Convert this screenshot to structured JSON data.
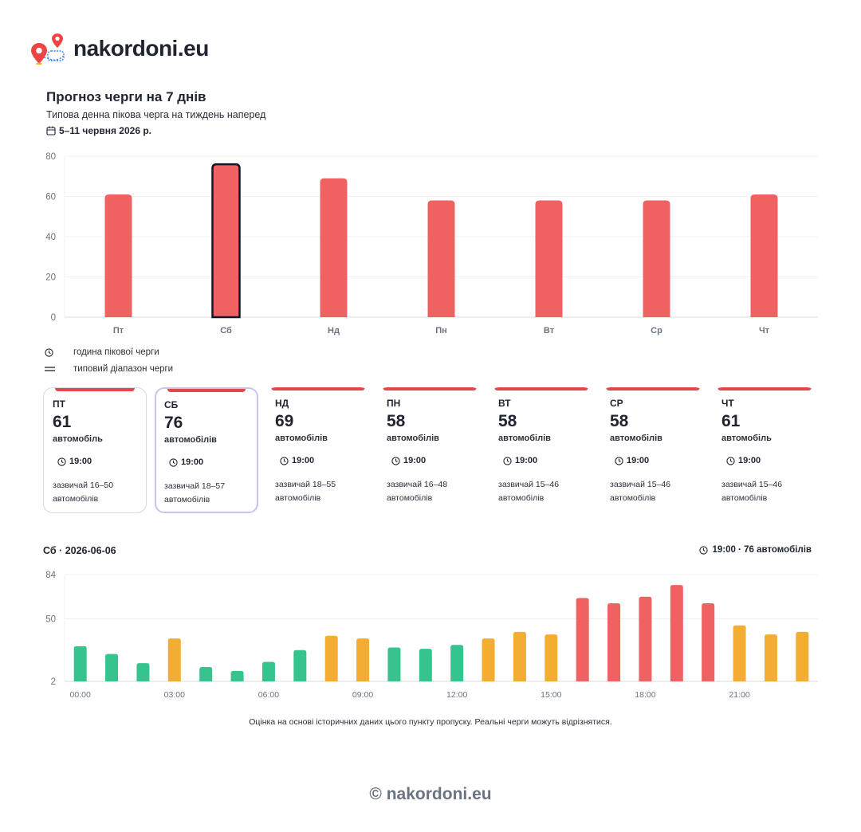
{
  "brand": {
    "name": "nakordoni.eu"
  },
  "header": {
    "title": "Прогноз черги на 7 днів",
    "subtitle": "Типова денна пікова черга на тиждень наперед",
    "date_range": "5–11 червня 2026 р."
  },
  "colors": {
    "high": "#f06262",
    "medium": "#f4ad33",
    "low": "#35c48d",
    "selected_outline": "#111827",
    "card_topbar": "#e2474a"
  },
  "legend": [
    {
      "icon": "clock-icon",
      "label": "година пікової черги"
    },
    {
      "icon": "range-icon",
      "label": "типовий діапазон черги"
    }
  ],
  "cards": [
    {
      "day": "ПТ",
      "value": "61",
      "unit": "автомобіль",
      "time": "19:00",
      "range": "зазвичай 16–50 автомобілів"
    },
    {
      "day": "СБ",
      "value": "76",
      "unit": "автомобілів",
      "time": "19:00",
      "range": "зазвичай 18–57 автомобілів"
    },
    {
      "day": "НД",
      "value": "69",
      "unit": "автомобілів",
      "time": "19:00",
      "range": "зазвичай 18–55 автомобілів"
    },
    {
      "day": "ПН",
      "value": "58",
      "unit": "автомобілів",
      "time": "19:00",
      "range": "зазвичай 16–48 автомобілів"
    },
    {
      "day": "ВТ",
      "value": "58",
      "unit": "автомобілів",
      "time": "19:00",
      "range": "зазвичай 15–46 автомобілів"
    },
    {
      "day": "СР",
      "value": "58",
      "unit": "автомобілів",
      "time": "19:00",
      "range": "зазвичай 15–46 автомобілів"
    },
    {
      "day": "ЧТ",
      "value": "61",
      "unit": "автомобіль",
      "time": "19:00",
      "range": "зазвичай 15–46 автомобілів"
    }
  ],
  "day_detail": {
    "heading": "Сб · 2026-06-06",
    "peak": "19:00 · 76 автомобілів"
  },
  "note": "Оцінка на основі історичних даних цього пункту пропуску. Реальні черги можуть відрізнятися.",
  "footer": "© nakordoni.eu",
  "chart_data": [
    {
      "type": "bar",
      "categories": [
        "Пт",
        "Сб",
        "Нд",
        "Пн",
        "Вт",
        "Ср",
        "Чт"
      ],
      "values": [
        61,
        76,
        69,
        58,
        58,
        58,
        61
      ],
      "ylim": [
        0,
        80
      ],
      "yticks": [
        0,
        20,
        40,
        60,
        80
      ],
      "selected": "Сб",
      "grid": true
    },
    {
      "type": "bar",
      "x": [
        "00:00",
        "01:00",
        "02:00",
        "03:00",
        "04:00",
        "05:00",
        "06:00",
        "07:00",
        "08:00",
        "09:00",
        "10:00",
        "11:00",
        "12:00",
        "13:00",
        "14:00",
        "15:00",
        "16:00",
        "17:00",
        "18:00",
        "19:00",
        "20:00",
        "21:00",
        "22:00",
        "23:00"
      ],
      "xtick_labels": [
        "00:00",
        "03:00",
        "06:00",
        "09:00",
        "12:00",
        "15:00",
        "18:00",
        "21:00"
      ],
      "values": [
        29,
        23,
        16,
        35,
        13,
        10,
        17,
        26,
        37,
        35,
        28,
        27,
        30,
        35,
        40,
        38,
        66,
        62,
        67,
        76,
        62,
        45,
        38,
        40
      ],
      "levels": [
        "low",
        "low",
        "low",
        "medium",
        "low",
        "low",
        "low",
        "low",
        "medium",
        "medium",
        "low",
        "low",
        "low",
        "medium",
        "medium",
        "medium",
        "high",
        "high",
        "high",
        "high",
        "high",
        "medium",
        "medium",
        "medium"
      ],
      "ylim": [
        2,
        84
      ],
      "yticks": [
        2,
        50,
        84
      ],
      "grid": true
    }
  ]
}
